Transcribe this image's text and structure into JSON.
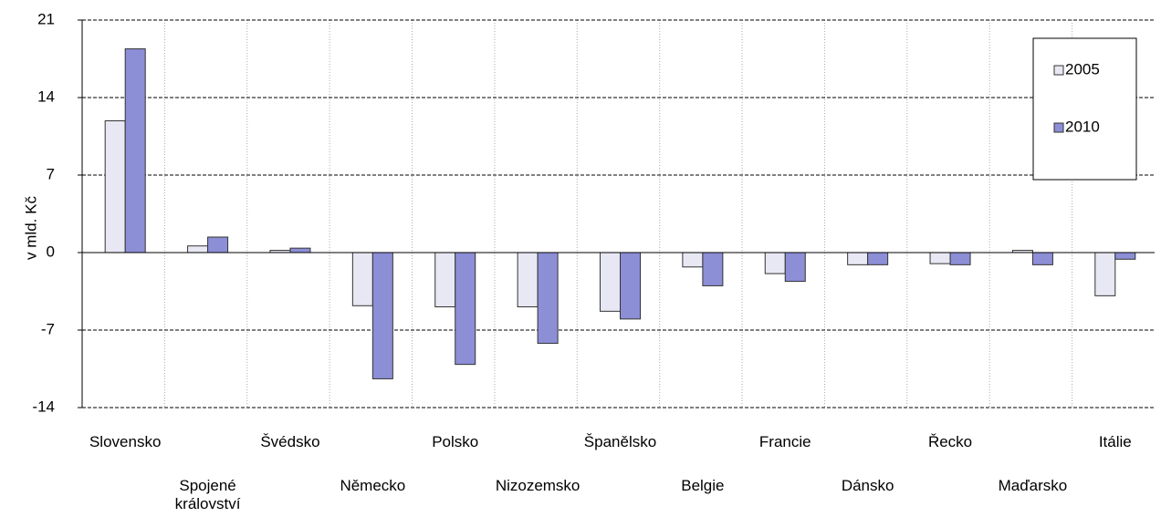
{
  "chart_data": {
    "type": "bar",
    "y_label": "v mld. Kč",
    "categories": [
      "Slovensko",
      "Spojené království",
      "Švédsko",
      "Německo",
      "Polsko",
      "Nizozemsko",
      "Španělsko",
      "Belgie",
      "Francie",
      "Dánsko",
      "Řecko",
      "Maďarsko",
      "Itálie"
    ],
    "series": [
      {
        "name": "2005",
        "color": "#e8e8f4",
        "values": [
          11.9,
          0.6,
          0.2,
          -4.8,
          -4.9,
          -4.9,
          -5.3,
          -1.3,
          -1.9,
          -1.1,
          -1.0,
          0.2,
          -3.9
        ]
      },
      {
        "name": "2010",
        "color": "#8c8fd6",
        "values": [
          18.4,
          1.4,
          0.4,
          -11.4,
          -10.1,
          -8.2,
          -6.0,
          -3.0,
          -2.6,
          -1.1,
          -1.1,
          -1.1,
          -0.6
        ]
      }
    ],
    "ylim": [
      -14,
      21
    ],
    "yticks": [
      -14,
      -7,
      0,
      7,
      14,
      21
    ],
    "grid": true,
    "legend": "top-right"
  }
}
